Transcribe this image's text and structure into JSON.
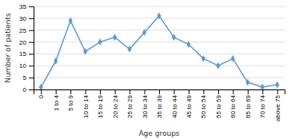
{
  "chart_data": {
    "type": "line",
    "categories": [
      "0",
      "1 to 4",
      "5 to 9",
      "10 to 14",
      "15 to 19",
      "20 to 24",
      "25 to 29",
      "30 to 34",
      "35 to 39",
      "40 to 44",
      "45 to 49",
      "50 to 54",
      "55 to 59",
      "60 to 64",
      "65 to 69",
      "70 to 74",
      "above 75"
    ],
    "values": [
      1,
      12,
      29,
      16,
      20,
      22,
      17,
      24,
      31,
      22,
      19,
      13,
      10,
      13,
      3,
      1,
      2
    ],
    "color": "#5B9BD5",
    "marker": "diamond",
    "xlabel": "Age groups",
    "ylabel": "Number of patients",
    "ylim": [
      0,
      35
    ],
    "yticks": [
      0,
      5,
      10,
      15,
      20,
      25,
      30,
      35
    ],
    "grid": true
  }
}
